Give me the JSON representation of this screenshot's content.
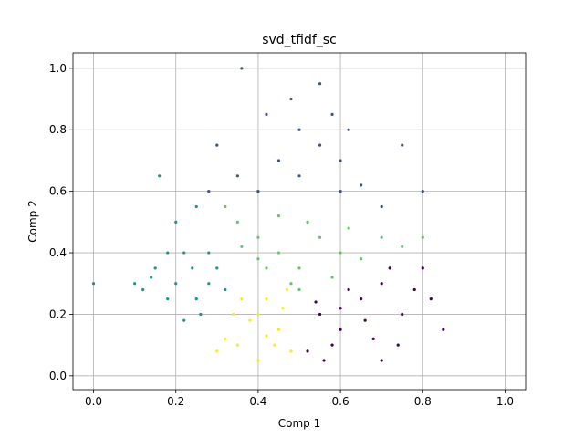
{
  "chart_data": {
    "type": "scatter",
    "title": "svd_tfidf_sc",
    "xlabel": "Comp  1",
    "ylabel": "Comp  2",
    "xlim": [
      -0.05,
      1.05
    ],
    "ylim": [
      -0.045,
      1.05
    ],
    "xticks": [
      "0.0",
      "0.2",
      "0.4",
      "0.6",
      "0.8",
      "1.0"
    ],
    "yticks": [
      "0.0",
      "0.2",
      "0.4",
      "0.6",
      "0.8",
      "1.0"
    ],
    "grid": true,
    "legend": "none",
    "series": [
      {
        "color": "#440154",
        "points": [
          [
            0.55,
            0.2
          ],
          [
            0.6,
            0.15
          ],
          [
            0.65,
            0.25
          ],
          [
            0.7,
            0.3
          ],
          [
            0.75,
            0.2
          ],
          [
            0.58,
            0.1
          ],
          [
            0.68,
            0.12
          ],
          [
            0.62,
            0.28
          ],
          [
            0.72,
            0.35
          ],
          [
            0.78,
            0.28
          ],
          [
            0.82,
            0.25
          ],
          [
            0.52,
            0.08
          ],
          [
            0.56,
            0.05
          ],
          [
            0.74,
            0.1
          ],
          [
            0.85,
            0.15
          ],
          [
            0.66,
            0.18
          ],
          [
            0.6,
            0.22
          ],
          [
            0.54,
            0.24
          ],
          [
            0.7,
            0.05
          ],
          [
            0.8,
            0.35
          ]
        ]
      },
      {
        "color": "#3b528b",
        "points": [
          [
            0.5,
            0.65
          ],
          [
            0.55,
            0.75
          ],
          [
            0.6,
            0.7
          ],
          [
            0.45,
            0.7
          ],
          [
            0.5,
            0.8
          ],
          [
            0.58,
            0.85
          ],
          [
            0.65,
            0.62
          ],
          [
            0.4,
            0.6
          ],
          [
            0.35,
            0.65
          ],
          [
            0.7,
            0.55
          ],
          [
            0.6,
            0.6
          ],
          [
            0.48,
            0.9
          ],
          [
            0.55,
            0.95
          ],
          [
            0.42,
            0.85
          ],
          [
            0.3,
            0.75
          ],
          [
            0.75,
            0.75
          ],
          [
            0.62,
            0.8
          ],
          [
            0.28,
            0.6
          ],
          [
            0.8,
            0.6
          ],
          [
            0.36,
            1.0
          ]
        ]
      },
      {
        "color": "#21918c",
        "points": [
          [
            0.2,
            0.3
          ],
          [
            0.25,
            0.25
          ],
          [
            0.15,
            0.35
          ],
          [
            0.22,
            0.4
          ],
          [
            0.28,
            0.3
          ],
          [
            0.18,
            0.25
          ],
          [
            0.1,
            0.3
          ],
          [
            0.26,
            0.2
          ],
          [
            0.3,
            0.35
          ],
          [
            0.2,
            0.5
          ],
          [
            0.25,
            0.55
          ],
          [
            0.16,
            0.65
          ],
          [
            0.12,
            0.28
          ],
          [
            0.24,
            0.35
          ],
          [
            0.32,
            0.28
          ],
          [
            0.22,
            0.18
          ],
          [
            0.0,
            0.3
          ],
          [
            0.14,
            0.32
          ],
          [
            0.28,
            0.4
          ],
          [
            0.18,
            0.4
          ]
        ]
      },
      {
        "color": "#5ec962",
        "points": [
          [
            0.45,
            0.4
          ],
          [
            0.5,
            0.35
          ],
          [
            0.55,
            0.45
          ],
          [
            0.4,
            0.45
          ],
          [
            0.6,
            0.4
          ],
          [
            0.35,
            0.5
          ],
          [
            0.48,
            0.3
          ],
          [
            0.65,
            0.38
          ],
          [
            0.7,
            0.45
          ],
          [
            0.42,
            0.35
          ],
          [
            0.52,
            0.5
          ],
          [
            0.36,
            0.42
          ],
          [
            0.58,
            0.32
          ],
          [
            0.75,
            0.42
          ],
          [
            0.45,
            0.52
          ],
          [
            0.62,
            0.48
          ],
          [
            0.32,
            0.55
          ],
          [
            0.5,
            0.28
          ],
          [
            0.8,
            0.45
          ],
          [
            0.4,
            0.38
          ]
        ]
      },
      {
        "color": "#fde725",
        "points": [
          [
            0.4,
            0.2
          ],
          [
            0.45,
            0.15
          ],
          [
            0.35,
            0.1
          ],
          [
            0.42,
            0.25
          ],
          [
            0.48,
            0.08
          ],
          [
            0.38,
            0.18
          ],
          [
            0.32,
            0.12
          ],
          [
            0.44,
            0.1
          ],
          [
            0.36,
            0.25
          ],
          [
            0.46,
            0.22
          ],
          [
            0.4,
            0.05
          ],
          [
            0.3,
            0.08
          ],
          [
            0.34,
            0.2
          ],
          [
            0.42,
            0.13
          ],
          [
            0.47,
            0.28
          ]
        ]
      }
    ]
  }
}
